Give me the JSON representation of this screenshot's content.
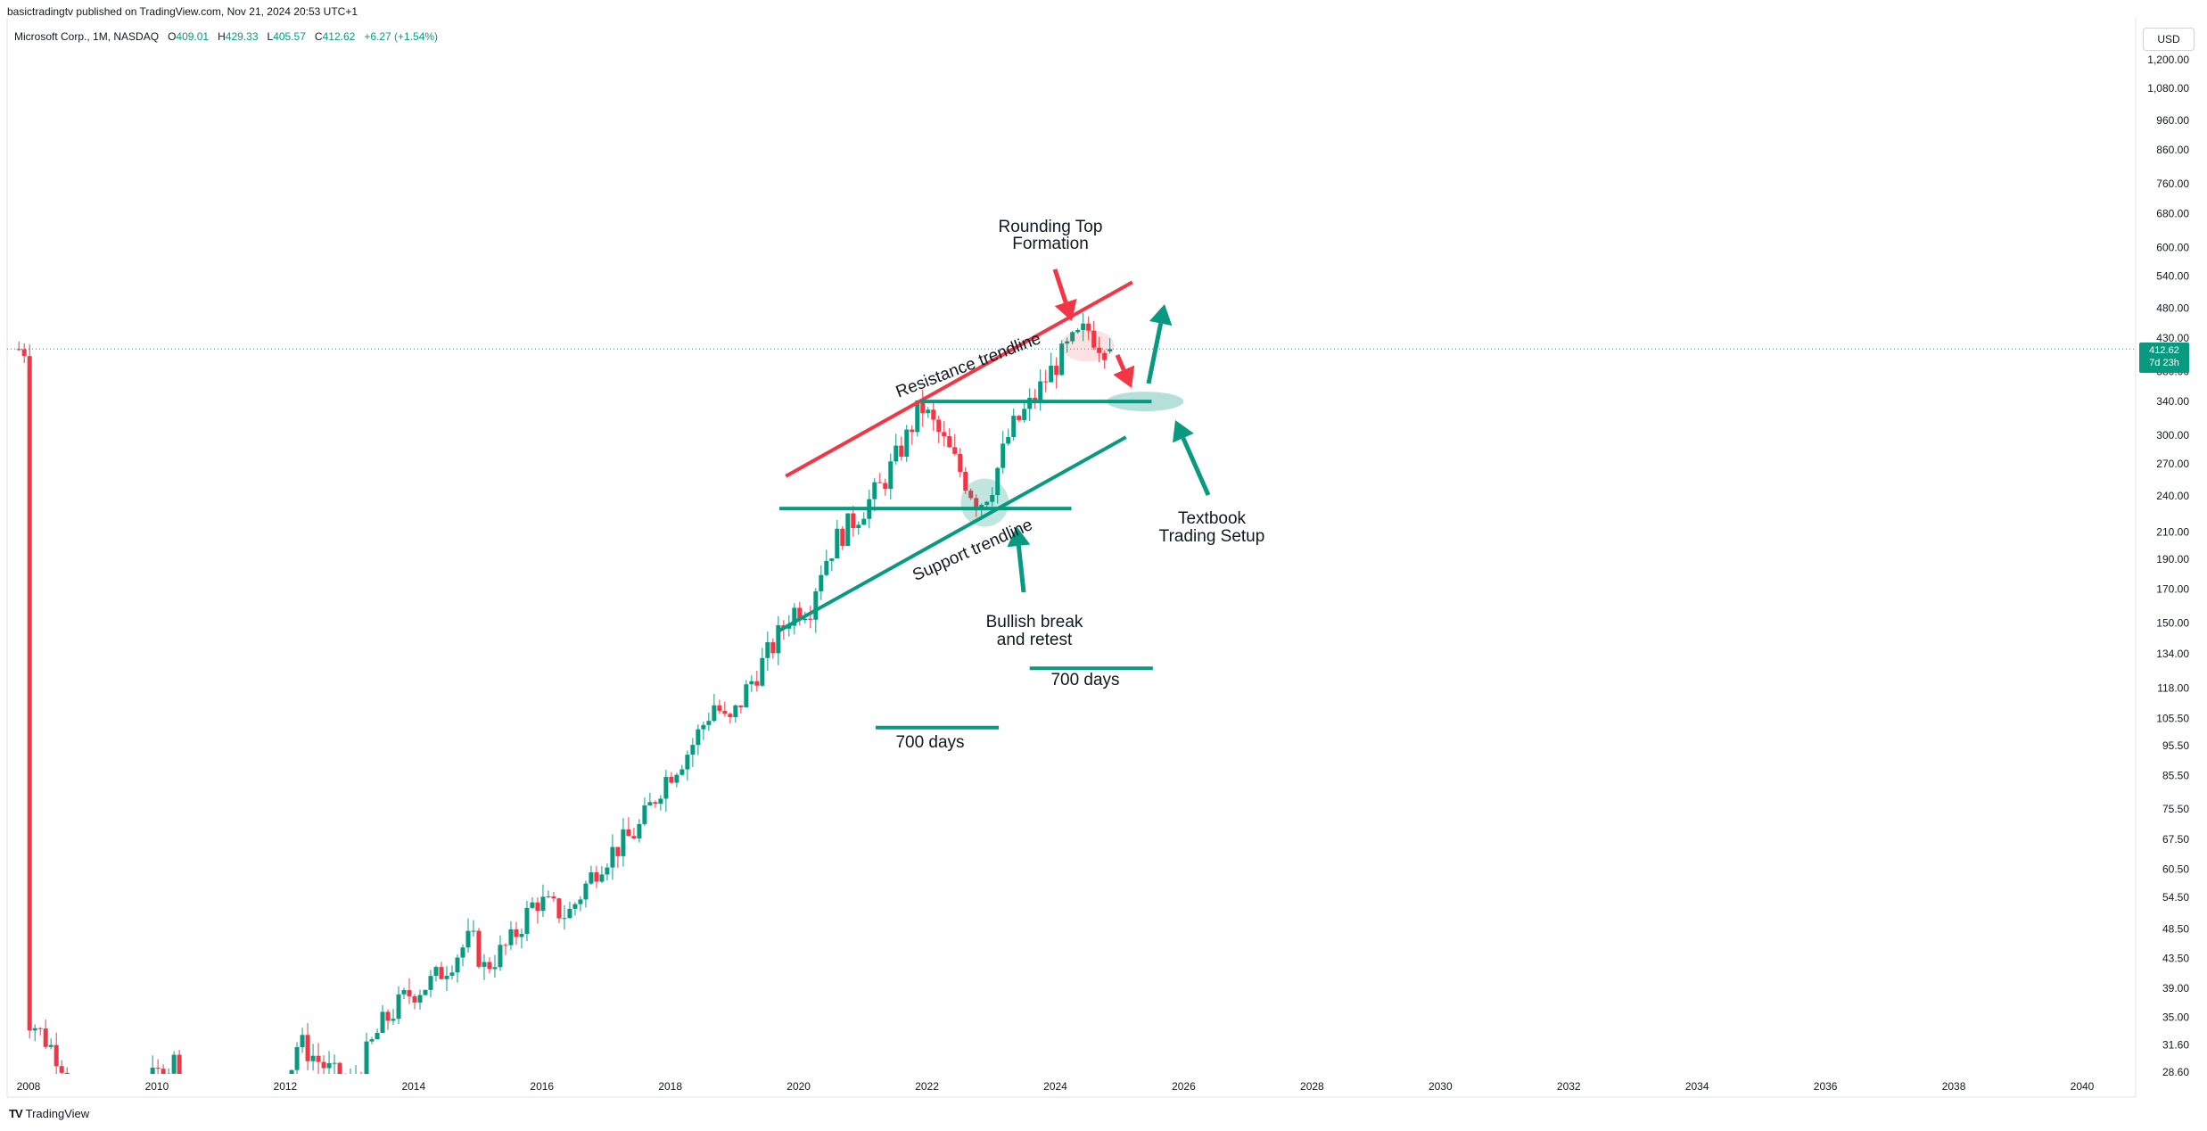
{
  "header": {
    "published": "basictradingtv published on TradingView.com, Nov 21, 2024 20:53 UTC+1"
  },
  "legend": {
    "symbol": "Microsoft Corp., 1M, NASDAQ",
    "o_label": "O",
    "o": "409.01",
    "h_label": "H",
    "h": "429.33",
    "l_label": "L",
    "l": "405.57",
    "c_label": "C",
    "c": "412.62",
    "change": "+6.27 (+1.54%)"
  },
  "currency_button": "USD",
  "price_tag": {
    "price": "412.62",
    "countdown": "7d 23h"
  },
  "footer": {
    "logo": "TV",
    "brand": "TradingView"
  },
  "colors": {
    "up": "#089981",
    "down": "#f23645",
    "resistance": "#f23645",
    "support": "#089981",
    "highlight": "#089981"
  },
  "chart_data": {
    "type": "candlestick",
    "title": "",
    "y_scale": "log",
    "ylim": [
      28.6,
      1250
    ],
    "xlim": [
      2007.8,
      2040.8
    ],
    "y_ticks": [
      "1,200.00",
      "1,080.00",
      "960.00",
      "860.00",
      "760.00",
      "680.00",
      "600.00",
      "540.00",
      "480.00",
      "430.00",
      "380.00",
      "340.00",
      "300.00",
      "270.00",
      "240.00",
      "210.00",
      "190.00",
      "170.00",
      "150.00",
      "134.00",
      "118.00",
      "105.50",
      "95.50",
      "85.50",
      "75.50",
      "67.50",
      "60.50",
      "54.50",
      "48.50",
      "43.50",
      "39.00",
      "35.00",
      "31.60",
      "28.60"
    ],
    "x_ticks": [
      "2008",
      "2010",
      "2012",
      "2014",
      "2016",
      "2018",
      "2020",
      "2022",
      "2024",
      "2026",
      "2028",
      "2030",
      "2032",
      "2034",
      "2036",
      "2038",
      "2040"
    ],
    "last_price": 412.62,
    "price_path": [
      [
        2008.0,
        35
      ],
      [
        2008.5,
        30
      ],
      [
        2009.0,
        21
      ],
      [
        2009.2,
        19
      ],
      [
        2009.8,
        27
      ],
      [
        2010.3,
        30
      ],
      [
        2010.5,
        24
      ],
      [
        2010.9,
        27
      ],
      [
        2011.5,
        25
      ],
      [
        2012.0,
        27
      ],
      [
        2012.2,
        32
      ],
      [
        2012.8,
        28
      ],
      [
        2013.0,
        27
      ],
      [
        2013.5,
        34
      ],
      [
        2013.9,
        38
      ],
      [
        2014.3,
        40
      ],
      [
        2014.9,
        47
      ],
      [
        2015.1,
        42
      ],
      [
        2015.5,
        46
      ],
      [
        2015.9,
        54
      ],
      [
        2016.4,
        51
      ],
      [
        2016.9,
        62
      ],
      [
        2017.5,
        70
      ],
      [
        2017.9,
        84
      ],
      [
        2018.3,
        94
      ],
      [
        2018.7,
        112
      ],
      [
        2018.9,
        102
      ],
      [
        2019.2,
        118
      ],
      [
        2019.6,
        138
      ],
      [
        2019.9,
        157
      ],
      [
        2020.2,
        160
      ],
      [
        2020.3,
        180
      ],
      [
        2020.6,
        205
      ],
      [
        2020.9,
        222
      ],
      [
        2021.3,
        250
      ],
      [
        2021.7,
        300
      ],
      [
        2021.9,
        336
      ],
      [
        2022.2,
        300
      ],
      [
        2022.5,
        265
      ],
      [
        2022.8,
        232
      ],
      [
        2023.0,
        248
      ],
      [
        2023.3,
        305
      ],
      [
        2023.6,
        335
      ],
      [
        2023.9,
        376
      ],
      [
        2024.2,
        415
      ],
      [
        2024.5,
        445
      ],
      [
        2024.7,
        420
      ],
      [
        2024.85,
        412.62
      ]
    ],
    "annotations": {
      "resistance_label": "Resistance trendline",
      "support_label": "Support trendline",
      "rounding_top": [
        "Rounding Top",
        "Formation"
      ],
      "bullish_break": [
        "Bullish break",
        "and retest"
      ],
      "textbook": [
        "Textbook",
        "Trading Setup"
      ],
      "days_1": "700 days",
      "days_2": "700 days"
    }
  }
}
